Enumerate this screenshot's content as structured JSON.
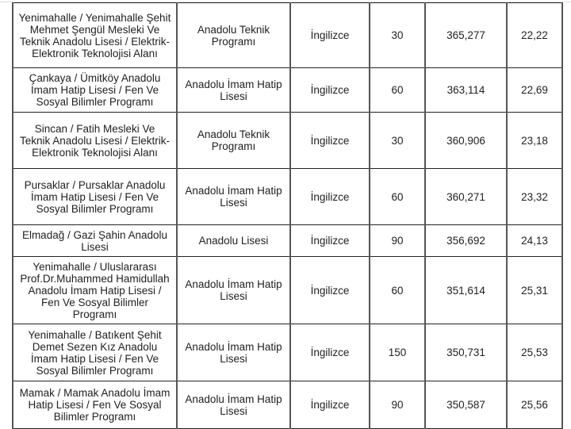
{
  "rows": [
    [
      "Yenimahalle / Yenimahalle Şehit Mehmet Şengül Mesleki Ve Teknik Anadolu Lisesi / Elektrik-Elektronik Teknolojisi Alanı",
      "Anadolu Teknik Programı",
      "İngilizce",
      "30",
      "365,277",
      "22,22"
    ],
    [
      "Çankaya / Ümitköy Anadolu İmam Hatip Lisesi / Fen Ve Sosyal Bilimler Programı",
      "Anadolu İmam Hatip Lisesi",
      "İngilizce",
      "60",
      "363,114",
      "22,69"
    ],
    [
      "Sincan / Fatih Mesleki Ve Teknik Anadolu Lisesi / Elektrik-Elektronik Teknolojisi Alanı",
      "Anadolu Teknik Programı",
      "İngilizce",
      "30",
      "360,906",
      "23,18"
    ],
    [
      "Pursaklar / Pursaklar Anadolu İmam Hatip Lisesi / Fen Ve Sosyal Bilimler Programı",
      "Anadolu İmam Hatip Lisesi",
      "İngilizce",
      "60",
      "360,271",
      "23,32"
    ],
    [
      "Elmadağ / Gazi Şahin Anadolu Lisesi",
      "Anadolu Lisesi",
      "İngilizce",
      "90",
      "356,692",
      "24,13"
    ],
    [
      "Yenimahalle / Uluslararası Prof.Dr.Muhammed Hamidullah Anadolu İmam Hatip Lisesi / Fen Ve Sosyal Bilimler Programı",
      "Anadolu İmam Hatip Lisesi",
      "İngilizce",
      "60",
      "351,614",
      "25,31"
    ],
    [
      "Yenimahalle / Batıkent Şehit Demet Sezen Kız Anadolu İmam Hatip Lisesi / Fen Ve Sosyal Bilimler Programı",
      "Anadolu İmam Hatip Lisesi",
      "İngilizce",
      "150",
      "350,731",
      "25,53"
    ],
    [
      "Mamak / Mamak Anadolu İmam Hatip Lisesi / Fen Ve Sosyal Bilimler Programı",
      "Anadolu İmam Hatip Lisesi",
      "İngilizce",
      "90",
      "350,587",
      "25,56"
    ]
  ]
}
